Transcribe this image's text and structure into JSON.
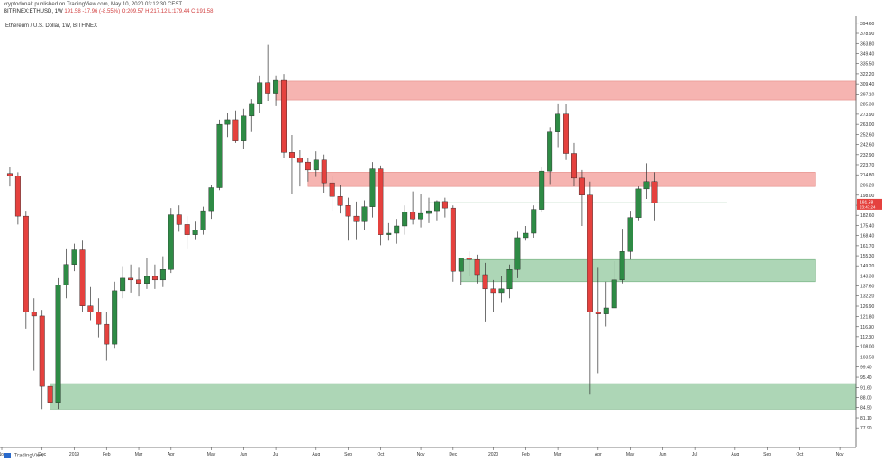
{
  "header": {
    "publisher_line": "cryptodonalt published on TradingView.com, May 10, 2020 03:12:30 CEST",
    "symbol": "BITFINEX:ETHUSD, 1W",
    "last_price": "191.58",
    "change": "-17.96 (-8.55%)",
    "ohlc": "O:209.57 H:217.12 L:179.44 C:191.58"
  },
  "chart_title": "Ethereum / U.S. Dollar, 1W, BITFINEX",
  "footer": {
    "logo_text": "TradingView"
  },
  "colors": {
    "up": "#2e8b45",
    "down": "#e5413e",
    "resistance_zone": "#f4a7a3",
    "support_zone": "#9fcfa9",
    "level_line": "#5a9e6a",
    "axis": "#555555",
    "price_badge": "#e5413e"
  },
  "chart_data": {
    "type": "candlestick",
    "title": "Ethereum / U.S. Dollar, 1W, BITFINEX",
    "ylim": [
      72,
      400
    ],
    "y_ticks": [
      77.9,
      81.1,
      84.5,
      88.0,
      91.6,
      95.4,
      99.4,
      103.5,
      108.0,
      112.3,
      116.9,
      121.8,
      126.9,
      132.2,
      137.6,
      143.3,
      149.2,
      155.3,
      161.7,
      168.4,
      175.4,
      182.6,
      190.1,
      198.0,
      206.2,
      214.8,
      223.7,
      232.9,
      242.6,
      252.6,
      263.0,
      273.9,
      285.3,
      297.1,
      309.4,
      322.2,
      335.5,
      349.4,
      363.8,
      378.9,
      394.6
    ],
    "y_tick_labels": [
      "77.90",
      "81.10",
      "84.50",
      "88.00",
      "91.60",
      "95.40",
      "99.40",
      "103.50",
      "108.00",
      "112.30",
      "116.90",
      "121.80",
      "126.90",
      "132.20",
      "137.60",
      "143.30",
      "149.20",
      "155.30",
      "161.70",
      "168.40",
      "175.40",
      "182.60",
      "190.10",
      "198.00",
      "206.20",
      "214.80",
      "223.70",
      "232.90",
      "242.60",
      "252.60",
      "263.00",
      "273.90",
      "285.30",
      "297.10",
      "309.40",
      "322.20",
      "335.50",
      "349.40",
      "363.80",
      "378.90",
      "394.60"
    ],
    "x_labels": [
      {
        "label": "Nov",
        "index": -5
      },
      {
        "label": "Dec",
        "index": 0
      },
      {
        "label": "2019",
        "index": 4
      },
      {
        "label": "Feb",
        "index": 8
      },
      {
        "label": "Mar",
        "index": 12
      },
      {
        "label": "Apr",
        "index": 16
      },
      {
        "label": "May",
        "index": 21
      },
      {
        "label": "Jun",
        "index": 25
      },
      {
        "label": "Jul",
        "index": 29
      },
      {
        "label": "Aug",
        "index": 34
      },
      {
        "label": "Sep",
        "index": 38
      },
      {
        "label": "Oct",
        "index": 42
      },
      {
        "label": "Nov",
        "index": 47
      },
      {
        "label": "Dec",
        "index": 51
      },
      {
        "label": "2020",
        "index": 56
      },
      {
        "label": "Feb",
        "index": 60
      },
      {
        "label": "Mar",
        "index": 64
      },
      {
        "label": "Apr",
        "index": 69
      },
      {
        "label": "May",
        "index": 73
      },
      {
        "label": "Jun",
        "index": 77
      },
      {
        "label": "Jul",
        "index": 81
      },
      {
        "label": "Aug",
        "index": 86
      },
      {
        "label": "Sep",
        "index": 90
      },
      {
        "label": "Oct",
        "index": 94
      },
      {
        "label": "Nov",
        "index": 99
      }
    ],
    "first_index": -5,
    "last_index": 101,
    "candles": [
      {
        "i": -4,
        "o": 216,
        "h": 222,
        "l": 205,
        "c": 214
      },
      {
        "i": -3,
        "o": 214,
        "h": 217,
        "l": 176,
        "c": 182
      },
      {
        "i": -2,
        "o": 182,
        "h": 186,
        "l": 116,
        "c": 124
      },
      {
        "i": -1,
        "o": 124,
        "h": 131,
        "l": 98,
        "c": 122
      },
      {
        "i": 0,
        "o": 122,
        "h": 125,
        "l": 84,
        "c": 92
      },
      {
        "i": 1,
        "o": 92,
        "h": 97,
        "l": 83,
        "c": 86
      },
      {
        "i": 2,
        "o": 86,
        "h": 142,
        "l": 84,
        "c": 138
      },
      {
        "i": 3,
        "o": 138,
        "h": 160,
        "l": 131,
        "c": 150
      },
      {
        "i": 4,
        "o": 150,
        "h": 163,
        "l": 146,
        "c": 159
      },
      {
        "i": 5,
        "o": 159,
        "h": 165,
        "l": 124,
        "c": 127
      },
      {
        "i": 6,
        "o": 127,
        "h": 137,
        "l": 120,
        "c": 124
      },
      {
        "i": 7,
        "o": 124,
        "h": 131,
        "l": 112,
        "c": 118
      },
      {
        "i": 8,
        "o": 118,
        "h": 124,
        "l": 102,
        "c": 109
      },
      {
        "i": 9,
        "o": 109,
        "h": 140,
        "l": 107,
        "c": 135
      },
      {
        "i": 10,
        "o": 135,
        "h": 149,
        "l": 131,
        "c": 142
      },
      {
        "i": 11,
        "o": 142,
        "h": 150,
        "l": 134,
        "c": 141
      },
      {
        "i": 12,
        "o": 141,
        "h": 148,
        "l": 132,
        "c": 139
      },
      {
        "i": 13,
        "o": 139,
        "h": 154,
        "l": 136,
        "c": 143
      },
      {
        "i": 14,
        "o": 143,
        "h": 150,
        "l": 136,
        "c": 141
      },
      {
        "i": 15,
        "o": 141,
        "h": 155,
        "l": 137,
        "c": 147
      },
      {
        "i": 16,
        "o": 147,
        "h": 188,
        "l": 145,
        "c": 183
      },
      {
        "i": 17,
        "o": 183,
        "h": 190,
        "l": 171,
        "c": 176
      },
      {
        "i": 18,
        "o": 176,
        "h": 182,
        "l": 160,
        "c": 169
      },
      {
        "i": 19,
        "o": 169,
        "h": 178,
        "l": 166,
        "c": 172
      },
      {
        "i": 20,
        "o": 172,
        "h": 189,
        "l": 169,
        "c": 186
      },
      {
        "i": 21,
        "o": 186,
        "h": 206,
        "l": 180,
        "c": 204
      },
      {
        "i": 22,
        "o": 204,
        "h": 268,
        "l": 202,
        "c": 263
      },
      {
        "i": 23,
        "o": 263,
        "h": 275,
        "l": 250,
        "c": 268
      },
      {
        "i": 24,
        "o": 268,
        "h": 278,
        "l": 244,
        "c": 246
      },
      {
        "i": 25,
        "o": 246,
        "h": 280,
        "l": 238,
        "c": 272
      },
      {
        "i": 26,
        "o": 272,
        "h": 291,
        "l": 255,
        "c": 286
      },
      {
        "i": 27,
        "o": 286,
        "h": 320,
        "l": 275,
        "c": 311
      },
      {
        "i": 28,
        "o": 311,
        "h": 362,
        "l": 289,
        "c": 298
      },
      {
        "i": 29,
        "o": 298,
        "h": 320,
        "l": 283,
        "c": 314
      },
      {
        "i": 30,
        "o": 314,
        "h": 322,
        "l": 230,
        "c": 235
      },
      {
        "i": 31,
        "o": 235,
        "h": 252,
        "l": 199,
        "c": 230
      },
      {
        "i": 32,
        "o": 230,
        "h": 237,
        "l": 205,
        "c": 226
      },
      {
        "i": 33,
        "o": 226,
        "h": 230,
        "l": 209,
        "c": 219
      },
      {
        "i": 34,
        "o": 219,
        "h": 236,
        "l": 213,
        "c": 228
      },
      {
        "i": 35,
        "o": 228,
        "h": 233,
        "l": 200,
        "c": 208
      },
      {
        "i": 36,
        "o": 208,
        "h": 214,
        "l": 186,
        "c": 197
      },
      {
        "i": 37,
        "o": 197,
        "h": 206,
        "l": 184,
        "c": 190
      },
      {
        "i": 38,
        "o": 190,
        "h": 196,
        "l": 165,
        "c": 182
      },
      {
        "i": 39,
        "o": 182,
        "h": 193,
        "l": 166,
        "c": 178
      },
      {
        "i": 40,
        "o": 178,
        "h": 194,
        "l": 172,
        "c": 189
      },
      {
        "i": 41,
        "o": 189,
        "h": 226,
        "l": 181,
        "c": 220
      },
      {
        "i": 42,
        "o": 220,
        "h": 223,
        "l": 162,
        "c": 169
      },
      {
        "i": 43,
        "o": 169,
        "h": 177,
        "l": 165,
        "c": 170
      },
      {
        "i": 44,
        "o": 170,
        "h": 180,
        "l": 163,
        "c": 175
      },
      {
        "i": 45,
        "o": 175,
        "h": 190,
        "l": 169,
        "c": 185
      },
      {
        "i": 46,
        "o": 185,
        "h": 201,
        "l": 176,
        "c": 180
      },
      {
        "i": 47,
        "o": 180,
        "h": 199,
        "l": 174,
        "c": 184
      },
      {
        "i": 48,
        "o": 184,
        "h": 196,
        "l": 177,
        "c": 186
      },
      {
        "i": 49,
        "o": 186,
        "h": 194,
        "l": 179,
        "c": 193
      },
      {
        "i": 50,
        "o": 193,
        "h": 196,
        "l": 181,
        "c": 188
      },
      {
        "i": 51,
        "o": 188,
        "h": 190,
        "l": 140,
        "c": 146
      },
      {
        "i": 52,
        "o": 146,
        "h": 153,
        "l": 138,
        "c": 154
      },
      {
        "i": 53,
        "o": 154,
        "h": 158,
        "l": 143,
        "c": 153
      },
      {
        "i": 54,
        "o": 153,
        "h": 156,
        "l": 139,
        "c": 144
      },
      {
        "i": 55,
        "o": 144,
        "h": 151,
        "l": 119,
        "c": 136
      },
      {
        "i": 56,
        "o": 136,
        "h": 141,
        "l": 124,
        "c": 134
      },
      {
        "i": 57,
        "o": 134,
        "h": 143,
        "l": 129,
        "c": 136
      },
      {
        "i": 58,
        "o": 136,
        "h": 150,
        "l": 131,
        "c": 147
      },
      {
        "i": 59,
        "o": 147,
        "h": 171,
        "l": 142,
        "c": 167
      },
      {
        "i": 60,
        "o": 167,
        "h": 175,
        "l": 165,
        "c": 170
      },
      {
        "i": 61,
        "o": 170,
        "h": 190,
        "l": 167,
        "c": 187
      },
      {
        "i": 62,
        "o": 187,
        "h": 222,
        "l": 185,
        "c": 218
      },
      {
        "i": 63,
        "o": 218,
        "h": 260,
        "l": 207,
        "c": 255
      },
      {
        "i": 64,
        "o": 255,
        "h": 286,
        "l": 240,
        "c": 274
      },
      {
        "i": 65,
        "o": 274,
        "h": 285,
        "l": 228,
        "c": 234
      },
      {
        "i": 66,
        "o": 234,
        "h": 244,
        "l": 205,
        "c": 212
      },
      {
        "i": 67,
        "o": 212,
        "h": 219,
        "l": 175,
        "c": 198
      },
      {
        "i": 68,
        "o": 198,
        "h": 209,
        "l": 89,
        "c": 124
      },
      {
        "i": 69,
        "o": 124,
        "h": 148,
        "l": 97,
        "c": 123
      },
      {
        "i": 70,
        "o": 123,
        "h": 140,
        "l": 117,
        "c": 126
      },
      {
        "i": 71,
        "o": 126,
        "h": 152,
        "l": 126,
        "c": 141
      },
      {
        "i": 72,
        "o": 141,
        "h": 173,
        "l": 139,
        "c": 158
      },
      {
        "i": 73,
        "o": 158,
        "h": 186,
        "l": 153,
        "c": 181
      },
      {
        "i": 74,
        "o": 181,
        "h": 205,
        "l": 179,
        "c": 203
      },
      {
        "i": 75,
        "o": 203,
        "h": 225,
        "l": 195,
        "c": 209
      },
      {
        "i": 76,
        "o": 209,
        "h": 217,
        "l": 179,
        "c": 192
      }
    ],
    "zones": [
      {
        "kind": "resistance",
        "from_i": 29,
        "to_i": 101,
        "low": 290,
        "high": 313
      },
      {
        "kind": "resistance",
        "from_i": 33,
        "to_i": 96,
        "low": 205,
        "high": 217
      },
      {
        "kind": "support",
        "from_i": 52,
        "to_i": 96,
        "low": 140,
        "high": 153
      },
      {
        "kind": "support",
        "from_i": 1,
        "to_i": 101,
        "low": 84,
        "high": 93
      }
    ],
    "level_lines": [
      {
        "from_i": 48,
        "to_i": 85,
        "value": 192
      }
    ],
    "price_badge": {
      "value": 191.58,
      "label": "191.58",
      "sub_label": "23:47:24"
    }
  }
}
